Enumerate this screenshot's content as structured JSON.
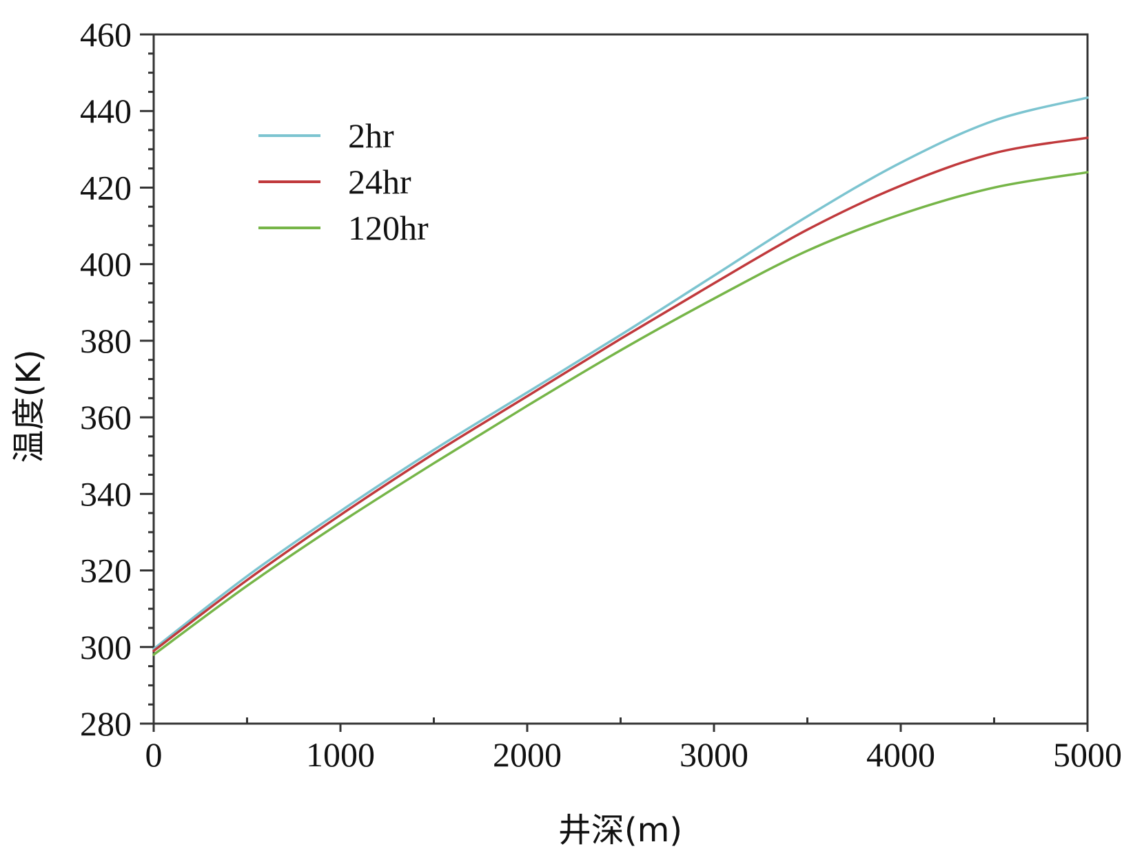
{
  "chart_data": {
    "type": "line",
    "title": "",
    "xlabel": "井深(m)",
    "ylabel": "温度(K)",
    "xlim": [
      0,
      5000
    ],
    "ylim": [
      280,
      460
    ],
    "xticks": [
      0,
      1000,
      2000,
      3000,
      4000,
      5000
    ],
    "yticks": [
      280,
      300,
      320,
      340,
      360,
      380,
      400,
      420,
      440,
      460
    ],
    "xtick_labels": [
      "0",
      "1000",
      "2000",
      "3000",
      "4000",
      "5000"
    ],
    "ytick_labels": [
      "280",
      "300",
      "320",
      "340",
      "360",
      "380",
      "400",
      "420",
      "440",
      "460"
    ],
    "grid": false,
    "legend_position": "top-left",
    "x": [
      0,
      500,
      1000,
      1500,
      2000,
      2500,
      3000,
      3500,
      4000,
      4500,
      5000
    ],
    "series": [
      {
        "name": "2hr",
        "color": "#7cc4d0",
        "values": [
          299.5,
          318.5,
          335.5,
          351.5,
          366.5,
          381.5,
          397.0,
          412.5,
          426.5,
          437.5,
          443.5
        ]
      },
      {
        "name": "24hr",
        "color": "#c0393c",
        "values": [
          299.0,
          317.5,
          334.5,
          350.5,
          365.5,
          380.5,
          395.0,
          409.0,
          420.5,
          429.0,
          433.0
        ]
      },
      {
        "name": "120hr",
        "color": "#76b548",
        "values": [
          298.0,
          316.0,
          332.5,
          348.0,
          363.0,
          377.5,
          391.0,
          403.5,
          413.0,
          420.0,
          424.0
        ]
      }
    ]
  }
}
